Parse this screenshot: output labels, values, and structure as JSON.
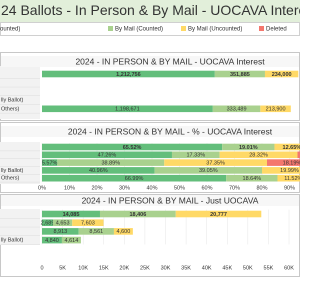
{
  "title": "24 Ballots - In Person & By Mail - UOCAVA Intere",
  "legend": [
    {
      "name": "ounted)",
      "color": "#63be7b"
    },
    {
      "name": "By Mail (Counted)",
      "color": "#a9d18e"
    },
    {
      "name": "By Mail (Uncounted)",
      "color": "#ffd966"
    },
    {
      "name": "Deleted",
      "color": "#f4776d"
    }
  ],
  "chart_data": [
    {
      "type": "bar",
      "orientation": "horizontal",
      "stacked": true,
      "title": "2024 - IN PERSON & BY MAIL - UOCAVA Interest",
      "categories": [
        null,
        null,
        null,
        "lly Ballot)",
        "Others)"
      ],
      "xlim": [
        0,
        2000000
      ],
      "series": [
        {
          "values": [
            1212756,
            null,
            null,
            null,
            1198671
          ],
          "value_labels": [
            "1,212,756",
            null,
            null,
            null,
            "1,198,671"
          ]
        },
        {
          "values": [
            351885,
            null,
            null,
            null,
            333489
          ],
          "value_labels": [
            "351,885",
            null,
            null,
            null,
            "333,489"
          ]
        },
        {
          "values": [
            234000,
            null,
            null,
            null,
            213900
          ],
          "value_labels": [
            "234,000",
            null,
            null,
            null,
            "213,900"
          ]
        }
      ]
    },
    {
      "type": "bar",
      "orientation": "horizontal",
      "stacked": true,
      "title": "2024 - IN PERSON & BY MAIL - % - UOCAVA Interest",
      "categories": [
        null,
        null,
        null,
        "lly Ballot)",
        "Others)"
      ],
      "xlim": [
        0,
        100
      ],
      "xticks": [
        {
          "value": 0,
          "label": "0%"
        },
        {
          "value": 10,
          "label": "10%"
        },
        {
          "value": 20,
          "label": "20%"
        },
        {
          "value": 30,
          "label": "30%"
        },
        {
          "value": 40,
          "label": "40%"
        },
        {
          "value": 50,
          "label": "50%"
        },
        {
          "value": 60,
          "label": "60%"
        },
        {
          "value": 70,
          "label": "70%"
        },
        {
          "value": 80,
          "label": "80%"
        },
        {
          "value": 90,
          "label": "90%"
        }
      ],
      "series": [
        {
          "values": [
            65.52,
            47.26,
            5.57,
            40.96,
            66.99
          ],
          "value_labels": [
            "65.52%",
            "47.26%",
            "5.57%",
            "40.96%",
            "66.99%"
          ]
        },
        {
          "values": [
            19.01,
            17.33,
            38.89,
            39.05,
            18.64
          ],
          "value_labels": [
            "19.01%",
            "17.33%",
            "38.89%",
            "39.05%",
            "18.64%"
          ]
        },
        {
          "values": [
            12.65,
            28.32,
            37.35,
            19.99,
            11.52
          ],
          "value_labels": [
            "12.65%",
            "28.32%",
            "37.35%",
            "19.99%",
            "11.52%"
          ]
        },
        {
          "values": [
            2.82,
            7.09,
            18.19,
            null,
            null
          ],
          "value_labels": [
            null,
            null,
            "18.19%",
            null,
            null
          ]
        }
      ]
    },
    {
      "type": "bar",
      "orientation": "horizontal",
      "stacked": true,
      "title": "2024 - IN PERSON & BY MAIL - Just UOCAVA",
      "categories": [
        null,
        null,
        null,
        "lly Ballot)"
      ],
      "xlim": [
        0,
        60000
      ],
      "xticks": [
        0,
        {
          "value": 5000,
          "label": "5K"
        },
        {
          "value": 10000,
          "label": "10K"
        },
        {
          "value": 15000,
          "label": "15K"
        },
        {
          "value": 20000,
          "label": "20K"
        },
        {
          "value": 25000,
          "label": "25K"
        },
        {
          "value": 30000,
          "label": "30K"
        },
        {
          "value": 35000,
          "label": "35K"
        },
        {
          "value": 40000,
          "label": "40K"
        },
        {
          "value": 45000,
          "label": "45K"
        },
        {
          "value": 50000,
          "label": "50K"
        },
        {
          "value": 55000,
          "label": "55K"
        },
        {
          "value": 60000,
          "label": "60K"
        }
      ],
      "series": [
        {
          "values": [
            14085,
            2689,
            8913,
            4840
          ],
          "value_labels": [
            "14,085",
            "2,689",
            "8,913",
            "4,840"
          ]
        },
        {
          "values": [
            18406,
            4653,
            8561,
            4614
          ],
          "value_labels": [
            "18,406",
            "4,653",
            "8,561",
            "4,614"
          ]
        },
        {
          "values": [
            20777,
            7603,
            4600,
            null
          ],
          "value_labels": [
            "20,777",
            "7,603",
            "4,600",
            null
          ]
        }
      ]
    }
  ]
}
